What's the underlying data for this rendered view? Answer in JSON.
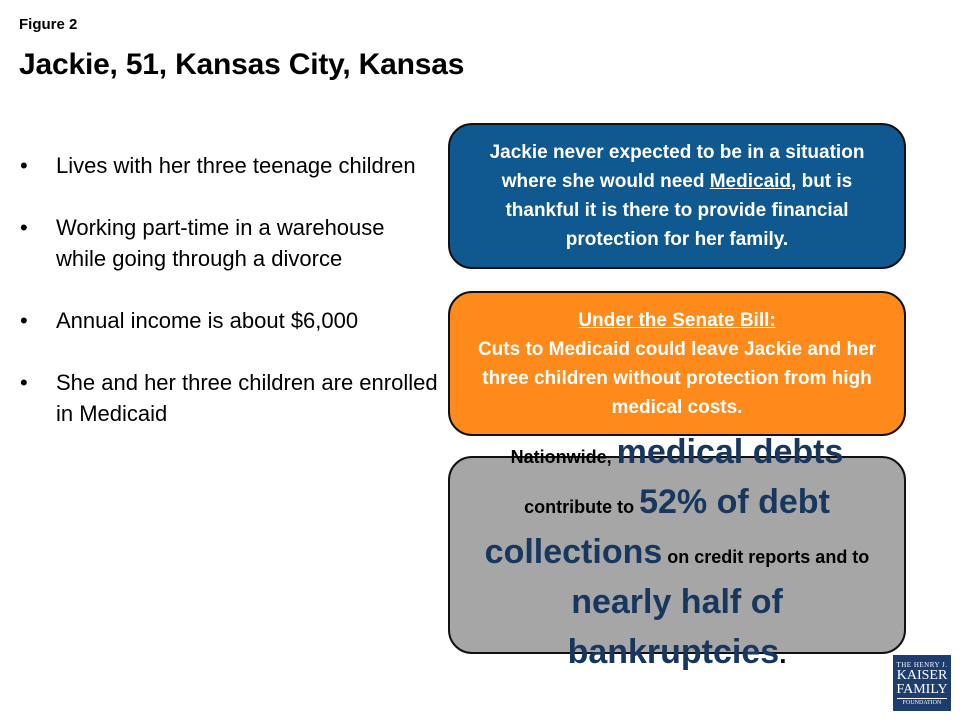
{
  "figure_label": "Figure 2",
  "title": "Jackie, 51, Kansas City, Kansas",
  "bullets": [
    "Lives with her three teenage children",
    "Working part-time in a warehouse while going through a divorce",
    "Annual income is about $6,000",
    "She and her three children are enrolled in Medicaid"
  ],
  "bullet_glyph": "•",
  "blue_box": {
    "before": "Jackie never expected to be in a situation where she would need ",
    "link": "Medicaid",
    "after": ", but is thankful it is there to provide financial protection for her family.",
    "color": "#0f5890"
  },
  "orange_box": {
    "heading": "Under the Senate Bill:",
    "body": "Cuts to Medicaid could leave Jackie and her three children without protection from high medical costs.",
    "color": "#fd8a1a"
  },
  "gray_box": {
    "p1": "Nationwide, ",
    "p2": "medical debts",
    "p3": "contribute to ",
    "p4": "52% of debt collections",
    "p5": " on credit reports and to ",
    "p6": "nearly half of bankruptcies",
    "p7": ".",
    "color": "#a6a6a6",
    "highlight_color": "#17375e"
  },
  "logo": {
    "line1": "THE HENRY J.",
    "line2": "KAISER",
    "line3": "FAMILY",
    "line4": "FOUNDATION"
  }
}
